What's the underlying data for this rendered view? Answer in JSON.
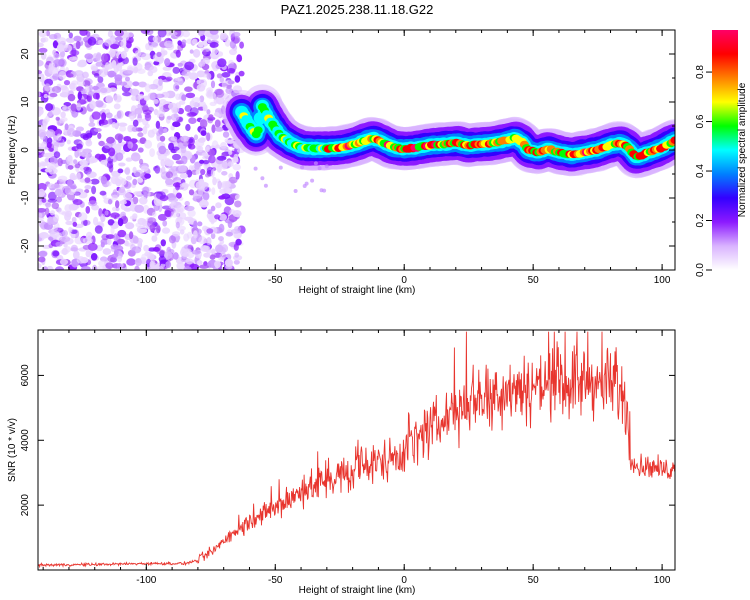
{
  "title": "PAZ1.2025.238.11.18.G22",
  "chart_data": [
    {
      "type": "heatmap",
      "xlabel": "Height of straight line (km)",
      "ylabel": "Frequency (Hz)",
      "xlim": [
        -142,
        105
      ],
      "ylim": [
        -25,
        25
      ],
      "xticks": [
        -100,
        -50,
        0,
        50,
        100
      ],
      "yticks": [
        -20,
        -10,
        0,
        10,
        20
      ],
      "colorbar": {
        "label": "Normalized spectral amplitude",
        "ticks": [
          0.0,
          0.2,
          0.4,
          0.6,
          0.8
        ],
        "range": [
          0.0,
          0.97
        ],
        "colormap": [
          "#ffffff",
          "#d9b3ff",
          "#8c1aff",
          "#3300ff",
          "#0080ff",
          "#00ffff",
          "#00ff00",
          "#ffff00",
          "#ff8000",
          "#ff0000",
          "#ff0066"
        ]
      },
      "noise_region_x": [
        -142,
        -63
      ],
      "ridge": {
        "x": [
          -63,
          -60,
          -57,
          -55,
          -52,
          -48,
          -44,
          -40,
          -35,
          -30,
          -25,
          -20,
          -15,
          -12,
          -8,
          -4,
          0,
          5,
          10,
          15,
          20,
          25,
          30,
          35,
          40,
          43,
          46,
          48,
          52,
          56,
          60,
          65,
          70,
          75,
          80,
          84,
          87,
          90,
          95,
          100,
          105
        ],
        "y": [
          8,
          5,
          3,
          9,
          6,
          3,
          1.5,
          0.5,
          0.3,
          0.3,
          0.5,
          1,
          2,
          2.5,
          1.5,
          0.5,
          0.2,
          0.5,
          1,
          1.2,
          1.5,
          1,
          1.2,
          1.5,
          2,
          2.5,
          1.5,
          0,
          -0.5,
          0.2,
          -0.5,
          -1,
          -0.5,
          0,
          1,
          1.5,
          0.5,
          -1.5,
          -0.5,
          0.5,
          2
        ]
      }
    },
    {
      "type": "line",
      "xlabel": "Height of straight line (km)",
      "ylabel": "SNR (10 * v/v)",
      "xlim": [
        -142,
        105
      ],
      "ylim": [
        0,
        7400
      ],
      "xticks": [
        -100,
        -50,
        0,
        50,
        100
      ],
      "yticks": [
        2000,
        4000,
        6000
      ],
      "color": "#e8352e",
      "envelope": {
        "x": [
          -142,
          -120,
          -100,
          -85,
          -80,
          -75,
          -70,
          -65,
          -60,
          -50,
          -40,
          -30,
          -20,
          -10,
          0,
          10,
          20,
          30,
          40,
          50,
          60,
          70,
          80,
          85,
          88,
          90,
          95,
          100,
          105
        ],
        "y": [
          150,
          170,
          200,
          200,
          300,
          550,
          900,
          1200,
          1500,
          1900,
          2400,
          2800,
          3000,
          3300,
          3700,
          4300,
          5000,
          5400,
          5600,
          5700,
          5800,
          5800,
          5700,
          5400,
          3600,
          3200,
          3200,
          3100,
          3100
        ]
      }
    }
  ]
}
